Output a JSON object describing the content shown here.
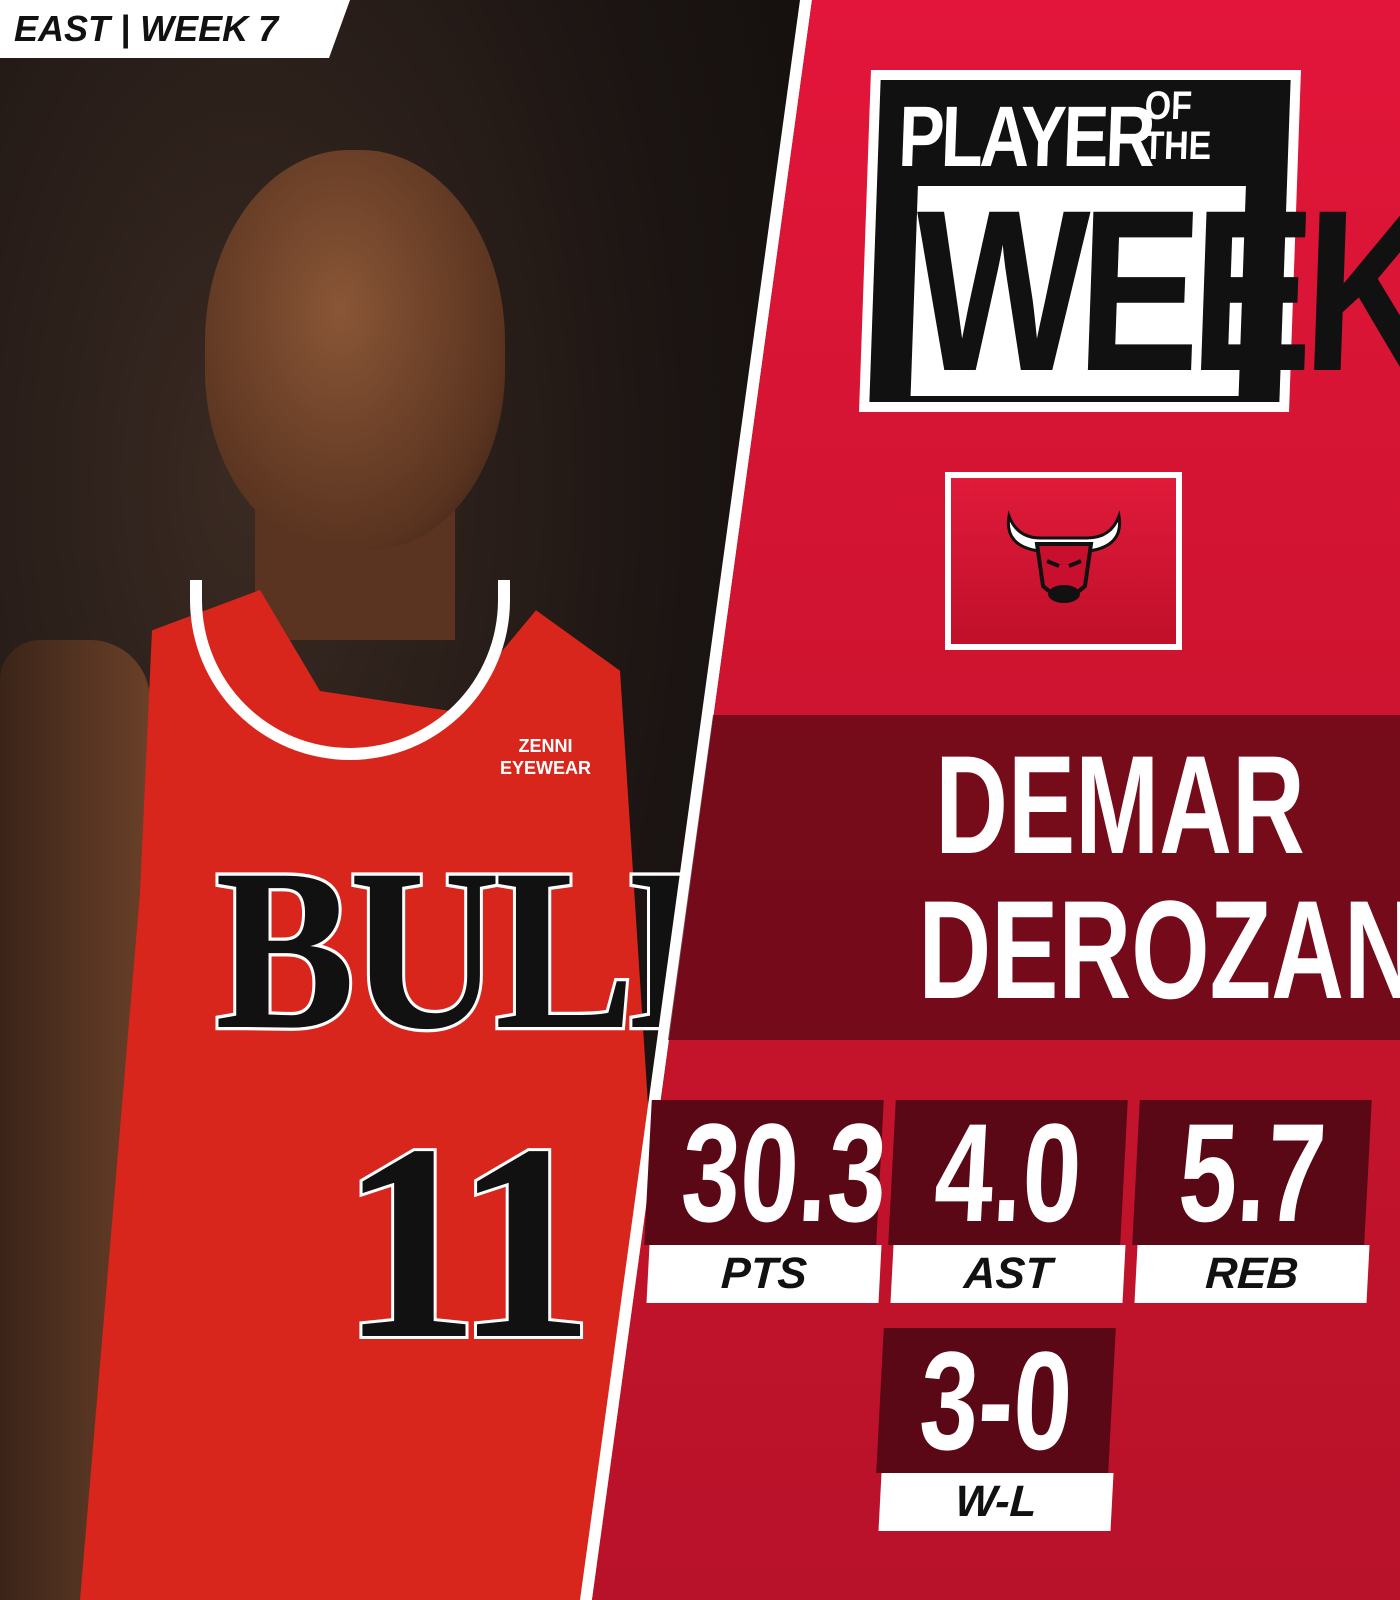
{
  "header_tag": "EAST | WEEK 7",
  "title": {
    "line1": "PLAYER",
    "line2a": "OF",
    "line2b": "THE",
    "line3": "WEEK"
  },
  "team_logo": "chicago-bulls-logo",
  "player": {
    "first_name": "DEMAR",
    "last_name": "DEROZAN"
  },
  "photo": {
    "jersey_text": "BULLS",
    "jersey_number": "11",
    "sponsor_line1": "ZENNI",
    "sponsor_line2": "EYEWEAR"
  },
  "stats": [
    {
      "value": "30.3",
      "label": "PTS"
    },
    {
      "value": "4.0",
      "label": "AST"
    },
    {
      "value": "5.7",
      "label": "REB"
    },
    {
      "value": "3-0",
      "label": "W-L"
    }
  ],
  "colors": {
    "primary_red": "#d0142c",
    "dark_red": "#5a0815",
    "white": "#ffffff",
    "black": "#111111"
  }
}
